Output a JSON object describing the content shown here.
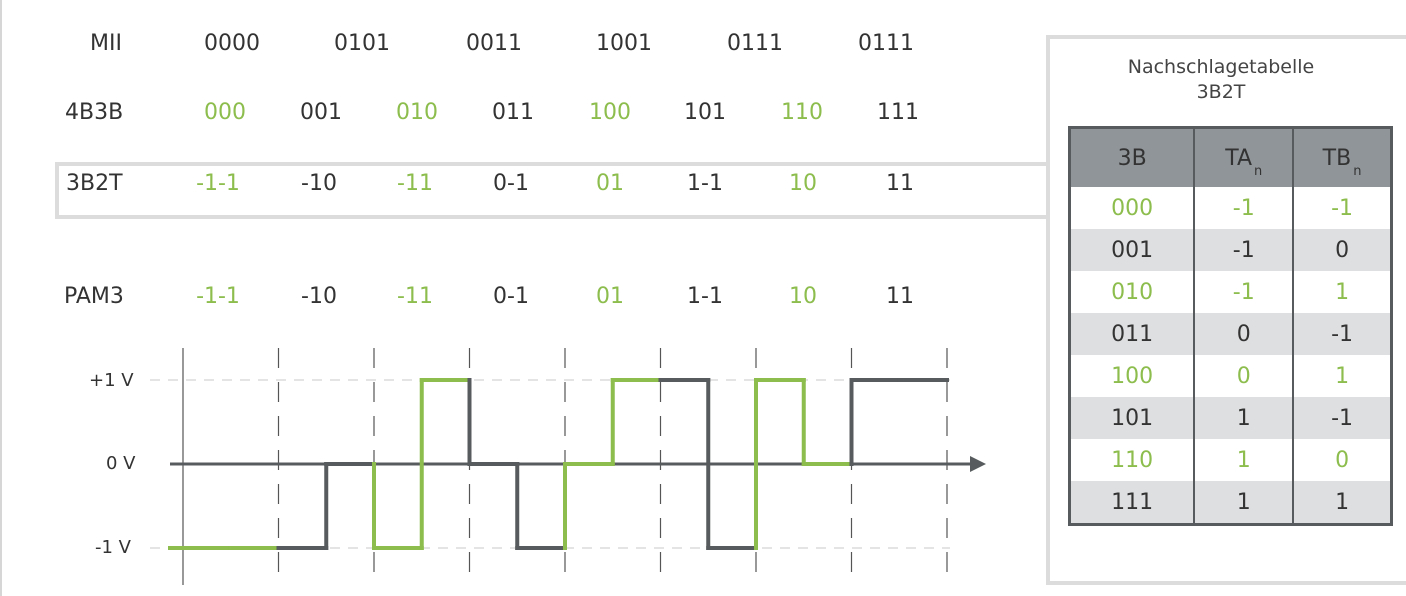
{
  "colors": {
    "green": "#8cbd4d",
    "dark": "#575b5d",
    "grid": "#c8c8c8",
    "frame": "#dcdcdc"
  },
  "rows": {
    "mii": {
      "label": "MII",
      "values": [
        "0000",
        "0101",
        "0011",
        "1001",
        "0111",
        "0111"
      ]
    },
    "fourb3b": {
      "label": "4B3B",
      "values": [
        "000",
        "001",
        "010",
        "011",
        "100",
        "101",
        "110",
        "111"
      ]
    },
    "threeb2t": {
      "label": "3B2T",
      "values": [
        "-1-1",
        "-10",
        "-11",
        "0-1",
        "01",
        "1-1",
        "10",
        "11"
      ]
    },
    "pam3": {
      "label": "PAM3",
      "values": [
        "-1-1",
        "-10",
        "-11",
        "0-1",
        "01",
        "1-1",
        "10",
        "11"
      ]
    }
  },
  "waveform": {
    "levels": [
      "+1 V",
      "0 V",
      "-1 V"
    ],
    "symbols": [
      -1,
      -1,
      -1,
      0,
      -1,
      1,
      0,
      -1,
      0,
      1,
      1,
      -1,
      1,
      0,
      1,
      1
    ],
    "symbol_colors": [
      "green",
      "green",
      "dark",
      "dark",
      "green",
      "green",
      "dark",
      "dark",
      "green",
      "green",
      "dark",
      "dark",
      "green",
      "green",
      "dark",
      "dark"
    ]
  },
  "lookup": {
    "title_line1": "Nachschlagetabelle",
    "title_line2": "3B2T",
    "headers": {
      "c1": "3B",
      "c2": "TA",
      "c2_sub": "n",
      "c3": "TB",
      "c3_sub": "n"
    },
    "rows": [
      {
        "b": "000",
        "ta": "-1",
        "tb": "-1"
      },
      {
        "b": "001",
        "ta": "-1",
        "tb": "0"
      },
      {
        "b": "010",
        "ta": "-1",
        "tb": "1"
      },
      {
        "b": "011",
        "ta": "0",
        "tb": "-1"
      },
      {
        "b": "100",
        "ta": "0",
        "tb": "1"
      },
      {
        "b": "101",
        "ta": "1",
        "tb": "-1"
      },
      {
        "b": "110",
        "ta": "1",
        "tb": "0"
      },
      {
        "b": "111",
        "ta": "1",
        "tb": "1"
      }
    ]
  }
}
